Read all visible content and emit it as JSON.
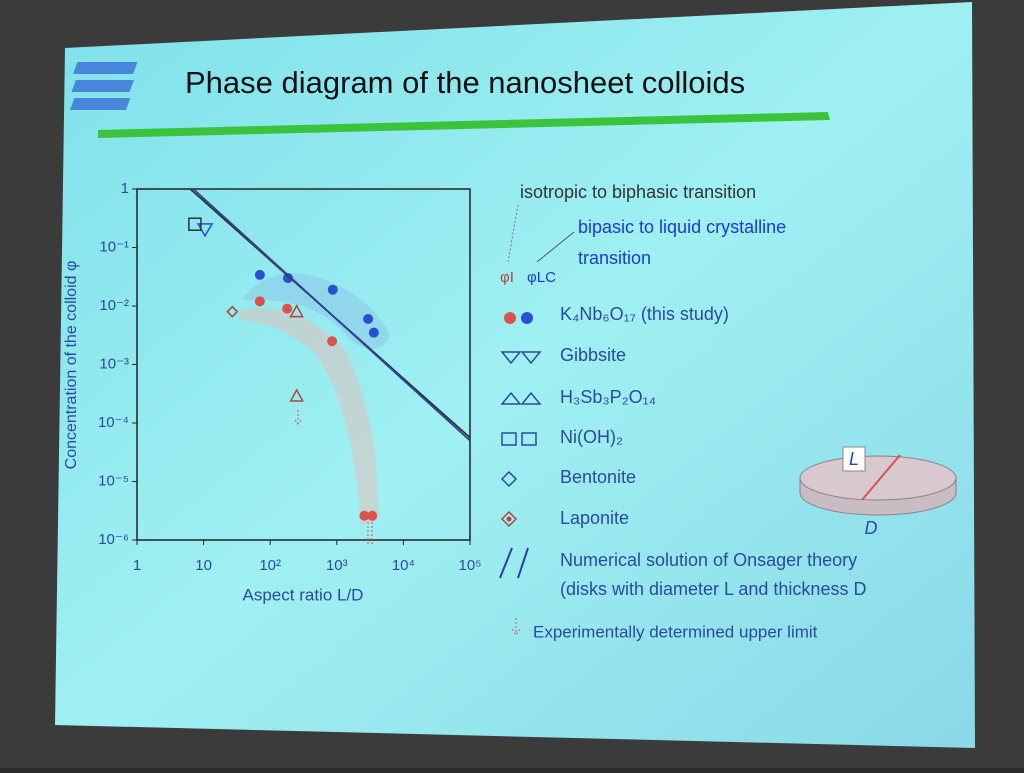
{
  "chart_data": {
    "type": "scatter",
    "title": "Phase diagram of the nanosheet colloids",
    "x_label": "Aspect ratio L/D",
    "y_label": "Concentration of the colloid φ",
    "log_x": true,
    "log_y": true,
    "xlim": [
      1,
      100000
    ],
    "ylim": [
      1e-06,
      1
    ],
    "xticks": [
      1,
      10,
      {
        "value": 100,
        "label": "10²"
      },
      {
        "value": 1000,
        "label": "10³"
      },
      {
        "value": 10000,
        "label": "10⁴"
      },
      {
        "value": 100000,
        "label": "10⁵"
      }
    ],
    "yticks": [
      {
        "value": 1e-06,
        "label": "10⁻⁶"
      },
      {
        "value": 1e-05,
        "label": "10⁻⁵"
      },
      {
        "value": 0.0001,
        "label": "10⁻⁴"
      },
      {
        "value": 0.001,
        "label": "10⁻³"
      },
      {
        "value": 0.01,
        "label": "10⁻²"
      },
      {
        "value": 0.1,
        "label": "10⁻¹"
      },
      1
    ],
    "series": [
      {
        "marker": "circle",
        "color": "#d9534a",
        "x": [
          70,
          180,
          850,
          2600,
          3400
        ],
        "values": [
          0.012,
          0.009,
          0.0025,
          2.6e-06,
          2.6e-06
        ]
      },
      {
        "marker": "circle",
        "color": "#2a4fd0",
        "x": [
          70,
          185,
          870,
          2950,
          3600
        ],
        "values": [
          0.034,
          0.03,
          0.019,
          0.006,
          0.0035
        ]
      },
      {
        "marker": "triangle-down",
        "color": "#2a4fd0",
        "x": [
          10.5
        ],
        "values": [
          0.2
        ]
      },
      {
        "marker": "square",
        "color": "#333333",
        "x": [
          7.4
        ],
        "values": [
          0.25
        ]
      },
      {
        "marker": "triangle",
        "color": "#b0453a",
        "x": [
          250,
          250
        ],
        "values": [
          0.008,
          0.00029
        ]
      },
      {
        "marker": "diamond",
        "color": "#b0453a",
        "x": [
          27
        ],
        "values": [
          0.008
        ]
      },
      {
        "marker": "line",
        "color": "#333333",
        "x": [
          6.3,
          100000
        ],
        "values": [
          1,
          5.6e-05
        ]
      },
      {
        "marker": "line",
        "color": "#3040a0",
        "x": [
          7,
          100000
        ],
        "values": [
          1,
          5e-05
        ]
      }
    ],
    "annotations": [
      "isotropic to biphasic transition",
      "bipasic to liquid crystalline",
      "transition",
      "φI",
      "φLC",
      "L",
      "D"
    ],
    "legend": [
      "K₄Nb₆O₁₇ (this study)",
      "Gibbsite",
      "H₃Sb₃P₂O₁₄",
      "Ni(OH)₂",
      "Bentonite",
      "Laponite",
      "Numerical solution of Onsager theory",
      "(disks with diameter L and thickness D",
      "Experimentally determined upper limit"
    ]
  }
}
